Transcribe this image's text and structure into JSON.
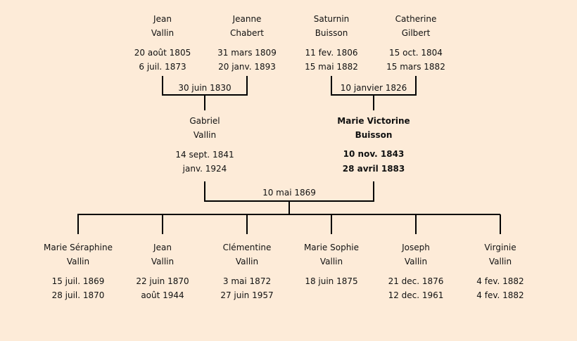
{
  "grandparents": [
    {
      "first": "Jean",
      "last": "Vallin",
      "birth": "20 août 1805",
      "death": "6 juil. 1873"
    },
    {
      "first": "Jeanne",
      "last": "Chabert",
      "birth": "31 mars 1809",
      "death": "20 janv. 1893"
    },
    {
      "first": "Saturnin",
      "last": "Buisson",
      "birth": "11 fev. 1806",
      "death": "15 mai 1882"
    },
    {
      "first": "Catherine",
      "last": "Gilbert",
      "birth": "15 oct. 1804",
      "death": "15 mars 1882"
    }
  ],
  "grandparent_marriages": [
    "30 juin 1830",
    "10 janvier 1826"
  ],
  "parents": [
    {
      "first": "Gabriel",
      "last": "Vallin",
      "birth": "14 sept. 1841",
      "death": "janv. 1924"
    },
    {
      "first": "Marie Victorine",
      "last": "Buisson",
      "birth": "10 nov. 1843",
      "death": "28 avril 1883",
      "highlighted": true
    }
  ],
  "parent_marriage": "10 mai 1869",
  "children": [
    {
      "first": "Marie Séraphine",
      "last": "Vallin",
      "birth": "15 juil. 1869",
      "death": "28 juil. 1870"
    },
    {
      "first": "Jean",
      "last": "Vallin",
      "birth": "22 juin 1870",
      "death": "août 1944"
    },
    {
      "first": "Clémentine",
      "last": "Vallin",
      "birth": "3 mai 1872",
      "death": "27 juin 1957"
    },
    {
      "first": "Marie Sophie",
      "last": "Vallin",
      "birth": "18 juin 1875",
      "death": ""
    },
    {
      "first": "Joseph",
      "last": "Vallin",
      "birth": "21 dec. 1876",
      "death": "12 dec. 1961"
    },
    {
      "first": "Virginie",
      "last": "Vallin",
      "birth": "4 fev. 1882",
      "death": "4 fev. 1882"
    }
  ],
  "colors": {
    "background": "#fdebd8",
    "line": "#000000"
  }
}
